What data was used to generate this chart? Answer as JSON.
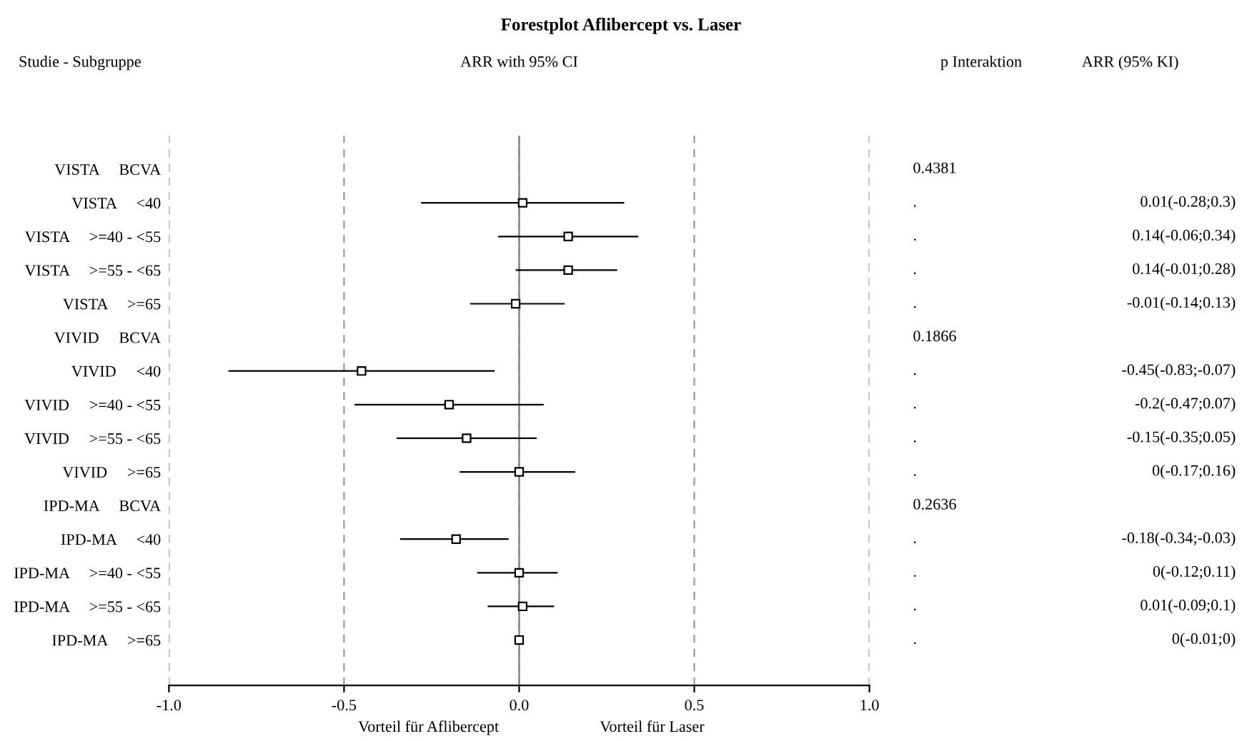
{
  "chart_data": {
    "type": "scatter",
    "orientation": "horizontal",
    "title": "Forestplot Aflibercept vs. Laser",
    "subtitle": "ARR with 95% CI",
    "ylabel": "Studie - Subgruppe",
    "categories": [
      "VISTA     BCVA",
      "VISTA     <40",
      "VISTA     >=40 - <55",
      "VISTA     >=55 - <65",
      "VISTA     >=65",
      "VIVID     BCVA",
      "VIVID     <40",
      "VIVID     >=40 - <55",
      "VIVID     >=55 - <65",
      "VIVID     >=65",
      "IPD-MA     BCVA",
      "IPD-MA     <40",
      "IPD-MA     >=40 - <55",
      "IPD-MA     >=55 - <65",
      "IPD-MA     >=65"
    ],
    "values": [
      null,
      0.01,
      0.14,
      0.14,
      -0.01,
      null,
      -0.45,
      -0.2,
      -0.15,
      0,
      null,
      -0.18,
      0,
      0.01,
      0
    ],
    "errors": [
      null,
      [
        -0.28,
        0.3
      ],
      [
        -0.06,
        0.34
      ],
      [
        -0.01,
        0.28
      ],
      [
        -0.14,
        0.13
      ],
      null,
      [
        -0.83,
        -0.07
      ],
      [
        -0.47,
        0.07
      ],
      [
        -0.35,
        0.05
      ],
      [
        -0.17,
        0.16
      ],
      null,
      [
        -0.34,
        -0.03
      ],
      [
        -0.12,
        0.11
      ],
      [
        -0.09,
        0.1
      ],
      [
        -0.01,
        0
      ]
    ],
    "value_labels": [
      null,
      "0.01(-0.28;0.3)",
      "0.14(-0.06;0.34)",
      "0.14(-0.01;0.28)",
      "-0.01(-0.14;0.13)",
      null,
      "-0.45(-0.83;-0.07)",
      "-0.2(-0.47;0.07)",
      "-0.15(-0.35;0.05)",
      "0(-0.17;0.16)",
      null,
      "-0.18(-0.34;-0.03)",
      "0(-0.12;0.11)",
      "0.01(-0.09;0.1)",
      "0(-0.01;0)"
    ],
    "color": "#000000",
    "marker": "square",
    "xlim": [
      -1,
      1
    ],
    "xticks": [
      {
        "value": -1,
        "label": "-1.0"
      },
      {
        "value": -0.5,
        "label": "-0.5"
      },
      {
        "value": 0,
        "label": "0.0"
      },
      {
        "value": 0.5,
        "label": "0.5"
      },
      {
        "value": 1,
        "label": "1.0"
      }
    ],
    "grid": "x",
    "line_style": "dashed",
    "ref_lines": [
      {
        "axis": "x",
        "value": 0,
        "label": null,
        "color": "#888888",
        "line_style": "solid"
      }
    ],
    "annotations": [
      "p Interaktion",
      "ARR (95% KI)",
      "Vorteil für Aflibercept",
      "Vorteil für Laser",
      "0.4381",
      ".",
      ".",
      ".",
      ".",
      "0.1866",
      ".",
      ".",
      ".",
      ".",
      "0.2636",
      ".",
      ".",
      ".",
      "."
    ]
  }
}
